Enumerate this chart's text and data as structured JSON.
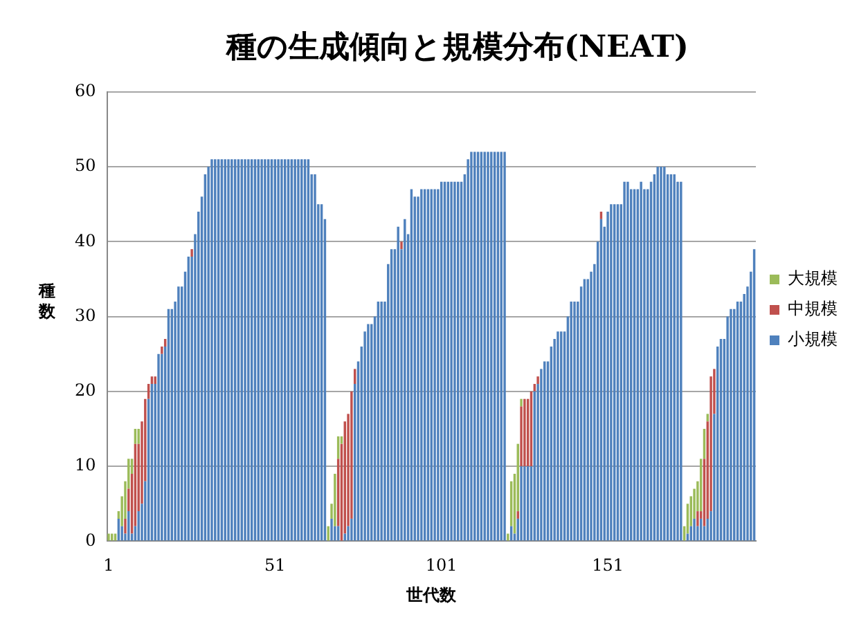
{
  "chart_data": {
    "type": "bar",
    "title": "種の生成傾向と規模分布(NEAT)",
    "xlabel": "世代数",
    "ylabel": "種数",
    "stacked": true,
    "grid": "y",
    "legend": "right",
    "ylim": [
      0,
      60
    ],
    "yticks": [
      0,
      10,
      20,
      30,
      40,
      50,
      60
    ],
    "categories": [
      "1",
      null,
      null,
      null,
      null,
      null,
      null,
      null,
      null,
      null,
      null,
      null,
      null,
      null,
      null,
      null,
      null,
      null,
      null,
      null,
      null,
      null,
      null,
      null,
      null,
      null,
      null,
      null,
      null,
      null,
      null,
      null,
      null,
      null,
      null,
      null,
      null,
      null,
      null,
      null,
      null,
      null,
      null,
      null,
      null,
      null,
      null,
      null,
      null,
      null,
      "51",
      null,
      null,
      null,
      null,
      null,
      null,
      null,
      null,
      null,
      null,
      null,
      null,
      null,
      null,
      null,
      null,
      null,
      null,
      null,
      null,
      null,
      null,
      null,
      null,
      null,
      null,
      null,
      null,
      null,
      null,
      null,
      null,
      null,
      null,
      null,
      null,
      null,
      null,
      null,
      null,
      null,
      null,
      null,
      null,
      null,
      null,
      null,
      null,
      null,
      "101",
      null,
      null,
      null,
      null,
      null,
      null,
      null,
      null,
      null,
      null,
      null,
      null,
      null,
      null,
      null,
      null,
      null,
      null,
      null,
      null,
      null,
      null,
      null,
      null,
      null,
      null,
      null,
      null,
      null,
      null,
      null,
      null,
      null,
      null,
      null,
      null,
      null,
      null,
      null,
      null,
      null,
      null,
      null,
      null,
      null,
      null,
      null,
      null,
      null,
      "151",
      null,
      null,
      null,
      null,
      null,
      null,
      null,
      null,
      null,
      null,
      null,
      null,
      null,
      null,
      null,
      null,
      null,
      null,
      null,
      null,
      null,
      null,
      null,
      null,
      null,
      null,
      null,
      null,
      null,
      null,
      null,
      null,
      null,
      null,
      null,
      null,
      null,
      null,
      null,
      null,
      null,
      null,
      null,
      null
    ],
    "series": [
      {
        "name": "小規模",
        "color": "#4f81bd",
        "values": [
          0,
          0,
          0,
          3,
          2,
          1,
          4,
          1,
          2,
          4,
          5,
          8,
          19,
          21,
          21,
          25,
          25,
          26,
          31,
          31,
          32,
          34,
          34,
          36,
          38,
          38,
          41,
          44,
          46,
          49,
          50,
          51,
          51,
          51,
          51,
          51,
          51,
          51,
          51,
          51,
          51,
          51,
          51,
          51,
          51,
          51,
          51,
          51,
          51,
          51,
          51,
          51,
          51,
          51,
          51,
          51,
          51,
          51,
          51,
          51,
          51,
          49,
          49,
          45,
          45,
          43,
          0,
          3,
          2,
          2,
          0,
          1,
          2,
          3,
          21,
          24,
          26,
          28,
          29,
          29,
          30,
          32,
          32,
          32,
          37,
          39,
          39,
          42,
          39,
          43,
          41,
          47,
          46,
          46,
          47,
          47,
          47,
          47,
          47,
          47,
          48,
          48,
          48,
          48,
          48,
          48,
          48,
          49,
          51,
          52,
          52,
          52,
          52,
          52,
          52,
          52,
          52,
          52,
          52,
          52,
          0,
          2,
          1,
          3,
          10,
          10,
          10,
          10,
          20,
          21,
          23,
          24,
          24,
          26,
          27,
          28,
          28,
          28,
          30,
          32,
          32,
          32,
          34,
          35,
          35,
          36,
          37,
          40,
          43,
          42,
          44,
          45,
          45,
          45,
          45,
          48,
          48,
          47,
          47,
          47,
          48,
          47,
          47,
          48,
          49,
          50,
          50,
          50,
          49,
          49,
          49,
          48,
          48,
          0,
          1,
          2,
          3,
          2,
          3,
          2,
          3,
          4,
          17,
          26,
          27,
          27,
          30,
          31,
          31,
          32,
          32,
          33,
          34,
          36,
          39
        ]
      },
      {
        "name": "中規模",
        "color": "#c0504d",
        "values": [
          0,
          0,
          0,
          0,
          0,
          2,
          3,
          8,
          11,
          9,
          11,
          11,
          2,
          1,
          1,
          0,
          1,
          1,
          0,
          0,
          0,
          0,
          0,
          0,
          0,
          1,
          0,
          0,
          0,
          0,
          0,
          0,
          0,
          0,
          0,
          0,
          0,
          0,
          0,
          0,
          0,
          0,
          0,
          0,
          0,
          0,
          0,
          0,
          0,
          0,
          0,
          0,
          0,
          0,
          0,
          0,
          0,
          0,
          0,
          0,
          0,
          0,
          0,
          0,
          0,
          0,
          0,
          0,
          0,
          9,
          13,
          15,
          15,
          17,
          2,
          0,
          0,
          0,
          0,
          0,
          0,
          0,
          0,
          0,
          0,
          0,
          0,
          0,
          1,
          0,
          0,
          0,
          0,
          0,
          0,
          0,
          0,
          0,
          0,
          0,
          0,
          0,
          0,
          0,
          0,
          0,
          0,
          0,
          0,
          0,
          0,
          0,
          0,
          0,
          0,
          0,
          0,
          0,
          0,
          0,
          0,
          0,
          0,
          1,
          8,
          9,
          9,
          10,
          1,
          1,
          0,
          0,
          0,
          0,
          0,
          0,
          0,
          0,
          0,
          0,
          0,
          0,
          0,
          0,
          0,
          0,
          0,
          0,
          1,
          0,
          0,
          0,
          0,
          0,
          0,
          0,
          0,
          0,
          0,
          0,
          0,
          0,
          0,
          0,
          0,
          0,
          0,
          0,
          0,
          0,
          0,
          0,
          0,
          0,
          0,
          0,
          0,
          2,
          1,
          9,
          13,
          18,
          6,
          0,
          0,
          0,
          0,
          0,
          0,
          0,
          0,
          0,
          0,
          0,
          0
        ]
      },
      {
        "name": "大規模",
        "color": "#9bbb59",
        "values": [
          1,
          1,
          1,
          1,
          4,
          5,
          4,
          2,
          2,
          2,
          0,
          0,
          0,
          0,
          0,
          0,
          0,
          0,
          0,
          0,
          0,
          0,
          0,
          0,
          0,
          0,
          0,
          0,
          0,
          0,
          0,
          0,
          0,
          0,
          0,
          0,
          0,
          0,
          0,
          0,
          0,
          0,
          0,
          0,
          0,
          0,
          0,
          0,
          0,
          0,
          0,
          0,
          0,
          0,
          0,
          0,
          0,
          0,
          0,
          0,
          0,
          0,
          0,
          0,
          0,
          0,
          2,
          2,
          7,
          3,
          1,
          0,
          0,
          0,
          0,
          0,
          0,
          0,
          0,
          0,
          0,
          0,
          0,
          0,
          0,
          0,
          0,
          0,
          0,
          0,
          0,
          0,
          0,
          0,
          0,
          0,
          0,
          0,
          0,
          0,
          0,
          0,
          0,
          0,
          0,
          0,
          0,
          0,
          0,
          0,
          0,
          0,
          0,
          0,
          0,
          0,
          0,
          0,
          0,
          0,
          1,
          6,
          8,
          9,
          1,
          0,
          0,
          0,
          0,
          0,
          0,
          0,
          0,
          0,
          0,
          0,
          0,
          0,
          0,
          0,
          0,
          0,
          0,
          0,
          0,
          0,
          0,
          0,
          0,
          0,
          0,
          0,
          0,
          0,
          0,
          0,
          0,
          0,
          0,
          0,
          0,
          0,
          0,
          0,
          0,
          0,
          0,
          0,
          0,
          0,
          0,
          0,
          0,
          2,
          4,
          4,
          4,
          4,
          7,
          4,
          1,
          0,
          0,
          0,
          0,
          0,
          0,
          0,
          0,
          0,
          0,
          0,
          0,
          0,
          0
        ]
      }
    ]
  }
}
